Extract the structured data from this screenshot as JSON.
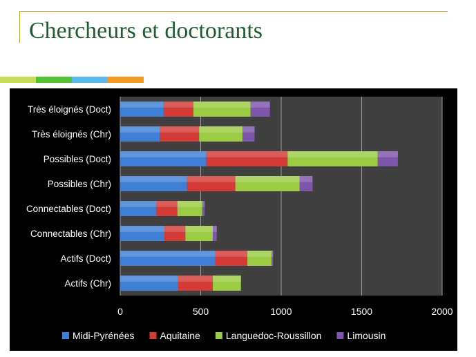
{
  "slide": {
    "title": "Chercheurs et doctorants"
  },
  "colors": {
    "title": "#1f5c2e",
    "title_rule": "#c9a227",
    "stripes": [
      "#c8dc5a",
      "#52c234",
      "#5bb8ec",
      "#f59a20"
    ]
  },
  "chart_data": {
    "type": "bar",
    "orientation": "horizontal",
    "stacked": true,
    "title": "",
    "xlabel": "",
    "ylabel": "",
    "xlim": [
      0,
      2000
    ],
    "x_ticks": [
      "0",
      "500",
      "1000",
      "1500",
      "2000"
    ],
    "grid": true,
    "legend_position": "bottom",
    "categories": [
      "Très éloignés (Doct)",
      "Très éloignés  (Chr)",
      "Possibles (Doct)",
      "Possibles (Chr)",
      "Connectables (Doct)",
      "Connectables  (Chr)",
      "Actifs (Doct)",
      "Actifs (Chr)"
    ],
    "series": [
      {
        "name": "Midi-Pyrénées",
        "color": "#3f7fd6",
        "values": [
          270,
          245,
          535,
          415,
          225,
          275,
          590,
          360
        ]
      },
      {
        "name": "Aquitaine",
        "color": "#d43a36",
        "values": [
          185,
          245,
          505,
          300,
          130,
          130,
          200,
          215
        ]
      },
      {
        "name": "Languedoc-Roussillon",
        "color": "#9ccb44",
        "values": [
          355,
          270,
          560,
          400,
          155,
          170,
          150,
          175
        ]
      },
      {
        "name": "Limousin",
        "color": "#7d55aa",
        "values": [
          120,
          75,
          125,
          80,
          15,
          25,
          10,
          0
        ]
      }
    ]
  }
}
